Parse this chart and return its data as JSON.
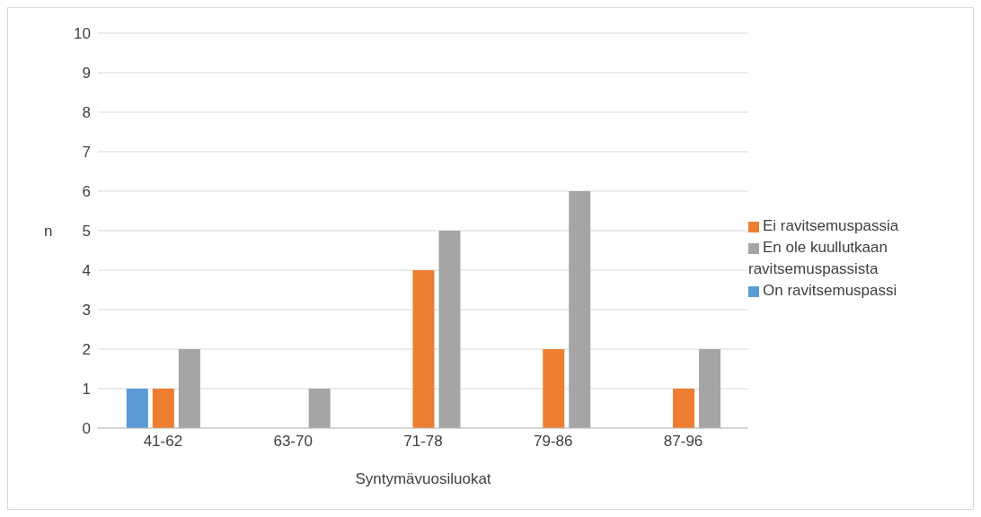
{
  "chart_data": {
    "type": "bar",
    "xlabel": "Syntymävuosiluokat",
    "ylabel": "n",
    "categories": [
      "41-62",
      "63-70",
      "71-78",
      "79-86",
      "87-96"
    ],
    "series": [
      {
        "name": "On ravitsemuspassi",
        "color": "#5b9bd5",
        "values": [
          1,
          0,
          0,
          0,
          0
        ]
      },
      {
        "name": "Ei ravitsemuspassia",
        "color": "#ed7d31",
        "values": [
          1,
          0,
          4,
          2,
          1
        ]
      },
      {
        "name": "En ole kuullutkaan ravitsemuspassista",
        "color": "#a5a5a5",
        "values": [
          2,
          1,
          5,
          6,
          2
        ]
      }
    ],
    "ylim": [
      0,
      10
    ],
    "yticks": [
      0,
      1,
      2,
      3,
      4,
      5,
      6,
      7,
      8,
      9,
      10
    ],
    "grid": "y",
    "legend": "right"
  }
}
